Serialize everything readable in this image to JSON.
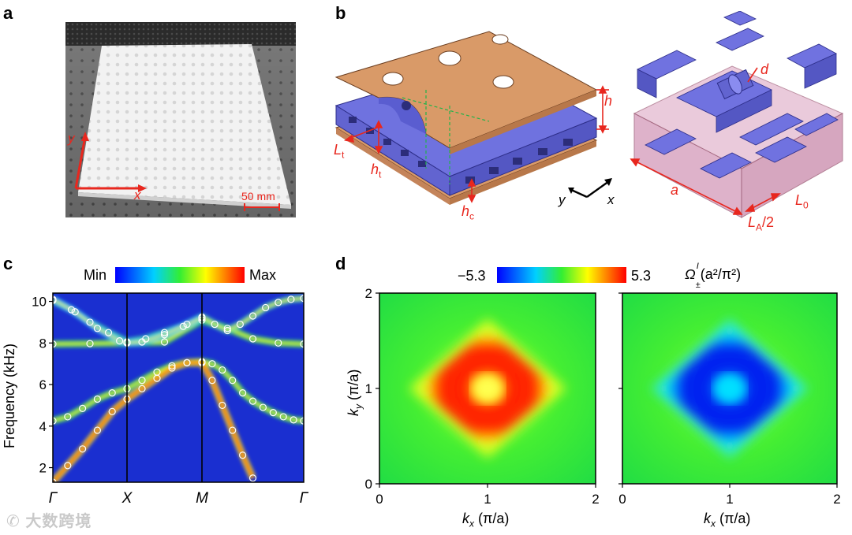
{
  "panels": {
    "a": {
      "label": "a",
      "axis_y": "y",
      "axis_x": "x",
      "scale_text": "50 mm"
    },
    "b": {
      "label": "b",
      "labels": {
        "h": "h",
        "Lt": "L",
        "Lt_sub": "t",
        "ht": "h",
        "ht_sub": "t",
        "hc": "h",
        "hc_sub": "c",
        "axis_y": "y",
        "axis_x": "x",
        "d": "d",
        "a": "a",
        "L0": "L",
        "L0_sub": "0",
        "LA": "L",
        "LA_sub": "A",
        "LA_suffix": "/2"
      }
    },
    "c": {
      "label": "c",
      "colorbar_min": "Min",
      "colorbar_max": "Max",
      "ylabel": "Frequency (kHz)",
      "yticks": [
        "2",
        "4",
        "6",
        "8",
        "10"
      ],
      "xticks": [
        "Γ",
        "X",
        "M",
        "Γ"
      ]
    },
    "d": {
      "label": "d",
      "colorbar_min": "−5.3",
      "colorbar_max": "5.3",
      "colorbar_title_main": "Ω",
      "colorbar_title_sup": "I",
      "colorbar_title_sub": "±",
      "colorbar_title_rest": "(a²/π²)",
      "ylabel_main": "k",
      "ylabel_sub": "y",
      "ylabel_rest": " (π/a)",
      "xlabel_main": "k",
      "xlabel_sub": "x",
      "xlabel_rest": " (π/a)",
      "xticks": [
        "0",
        "1",
        "2"
      ],
      "yticks": [
        "0",
        "1",
        "2"
      ]
    }
  },
  "chart_data": [
    {
      "type": "heatmap",
      "panel": "c",
      "title": "",
      "ylabel": "Frequency (kHz)",
      "xlabel": "",
      "ylim": [
        1.3,
        10.4
      ],
      "x_ticks": [
        "Γ",
        "X",
        "M",
        "Γ"
      ],
      "colorbar": [
        "Min",
        "Max"
      ],
      "series": [
        {
          "x": [
            0,
            0.2,
            0.4,
            0.6,
            0.8,
            1.0,
            1.2,
            1.4,
            1.6,
            1.8,
            2.0,
            2.2,
            2.4,
            2.6,
            2.8,
            3.0,
            3.2,
            3.4,
            3.6,
            3.8,
            4.0
          ],
          "y": [
            4.25,
            4.45,
            4.85,
            5.3,
            5.6,
            5.8,
            6.2,
            6.6,
            6.9,
            7.05,
            7.1,
            7.0,
            6.7,
            6.2,
            5.6,
            5.2,
            4.9,
            4.65,
            4.45,
            4.3,
            4.25
          ]
        },
        {
          "x": [
            0,
            0.2,
            0.4,
            0.6,
            0.8,
            1.0,
            1.2,
            1.4,
            1.6,
            1.8,
            2.0,
            2.2,
            2.4,
            2.6,
            2.8,
            3.0
          ],
          "y": [
            1.3,
            2.1,
            2.9,
            3.8,
            4.7,
            5.3,
            5.8,
            6.3,
            6.8,
            7.05,
            7.05,
            6.2,
            5.0,
            3.8,
            2.6,
            1.5
          ]
        },
        {
          "x": [
            0,
            0.5,
            1.0,
            1.5,
            2.0,
            2.5,
            3.0,
            3.5,
            4.0
          ],
          "y": [
            7.95,
            7.97,
            8.0,
            8.05,
            9.1,
            8.7,
            8.2,
            8.0,
            7.95
          ]
        },
        {
          "x": [
            0,
            0.25,
            0.5,
            0.75,
            1.0,
            1.25,
            1.5,
            1.75,
            2.0,
            2.25,
            2.5,
            2.75,
            3.0,
            3.25,
            3.5,
            3.75,
            4.0
          ],
          "y": [
            10.05,
            9.6,
            9.0,
            8.5,
            8.05,
            8.2,
            8.5,
            8.8,
            9.25,
            8.9,
            8.6,
            8.9,
            9.3,
            9.7,
            9.95,
            10.1,
            10.15
          ]
        },
        {
          "x": [
            0,
            0.3,
            0.6,
            0.9,
            1.0,
            1.2,
            1.5,
            1.8,
            2.0
          ],
          "y": [
            10.1,
            9.5,
            8.7,
            8.1,
            8.0,
            8.05,
            8.4,
            8.9,
            9.2
          ]
        }
      ]
    },
    {
      "type": "heatmap",
      "panel": "d-left",
      "xlabel": "kx (π/a)",
      "ylabel": "ky (π/a)",
      "xlim": [
        0,
        2
      ],
      "ylim": [
        0,
        2
      ],
      "colorbar_range": [
        -5.3,
        5.3
      ],
      "peak_value": 5.3,
      "center": [
        1,
        1
      ],
      "shape": "diamond"
    },
    {
      "type": "heatmap",
      "panel": "d-right",
      "xlabel": "kx (π/a)",
      "xlim": [
        0,
        2
      ],
      "ylim": [
        0,
        2
      ],
      "colorbar_range": [
        -5.3,
        5.3
      ],
      "peak_value": -5.3,
      "center": [
        1,
        1
      ],
      "shape": "diamond"
    }
  ],
  "watermark": "大数跨境",
  "colors": {
    "red_annotation": "#e8271e",
    "plate_orange": "#d99a68",
    "lattice_blue": "#7072e0",
    "pink_box": "#d8a0c0"
  }
}
